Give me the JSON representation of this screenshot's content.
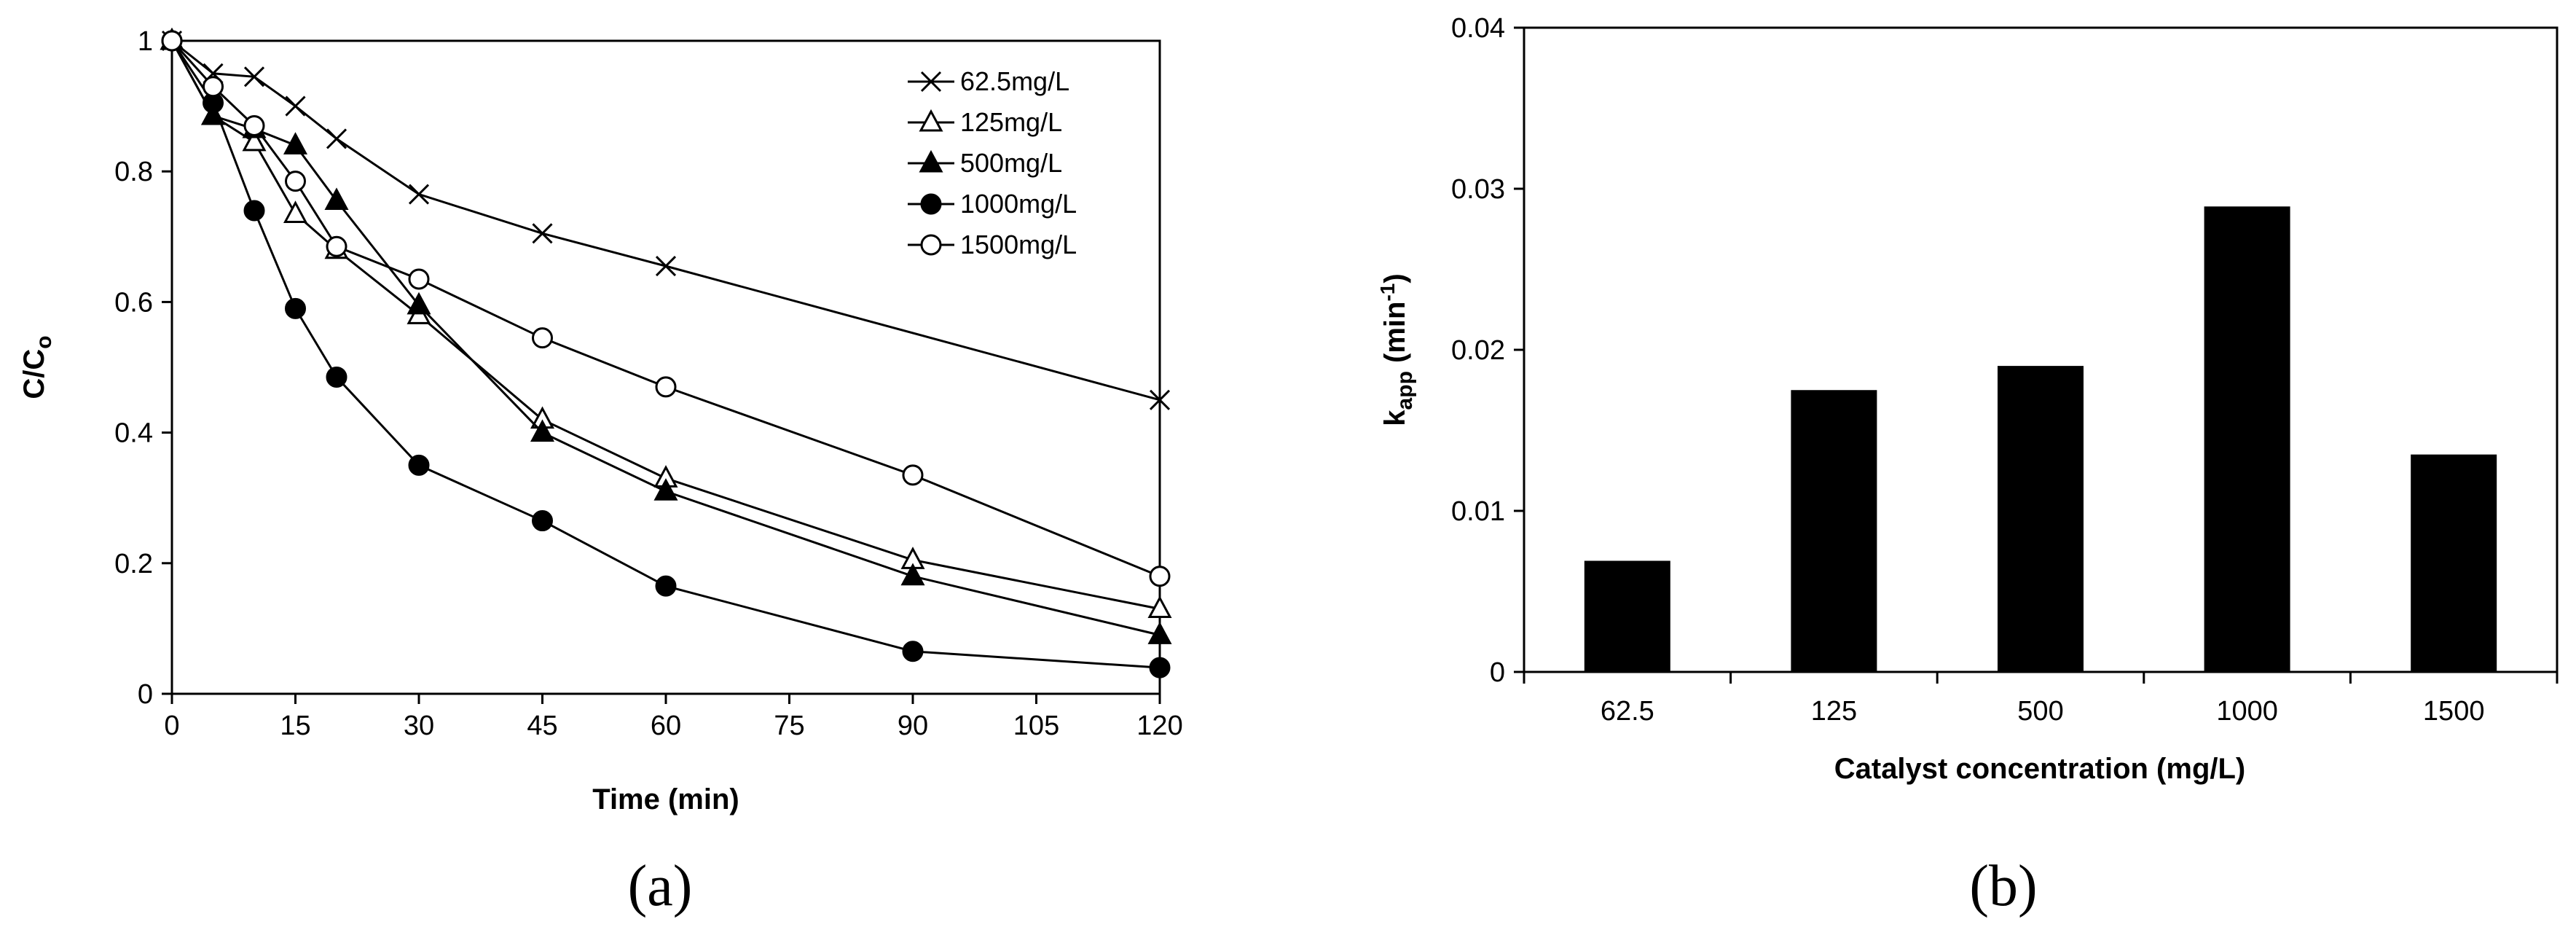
{
  "chart_data": [
    {
      "type": "line",
      "panel_label": "(a)",
      "xlabel": "Time (min)",
      "ylabel": {
        "main": "C/C",
        "sub": "o"
      },
      "xlim": [
        0,
        120
      ],
      "ylim": [
        0,
        1
      ],
      "xticks": [
        "0",
        "15",
        "30",
        "45",
        "60",
        "75",
        "90",
        "105",
        "120"
      ],
      "yticks": [
        "0",
        "0.2",
        "0.4",
        "0.6",
        "0.8",
        "1"
      ],
      "grid": false,
      "legend_position": "top-right",
      "series": [
        {
          "name": "62.5mg/L",
          "marker": "x",
          "x": [
            0,
            5,
            10,
            15,
            20,
            30,
            45,
            60,
            120
          ],
          "y": [
            1.0,
            0.95,
            0.945,
            0.9,
            0.85,
            0.765,
            0.705,
            0.655,
            0.45
          ]
        },
        {
          "name": "125mg/L",
          "marker": "triangle-open",
          "x": [
            0,
            5,
            10,
            15,
            20,
            30,
            45,
            60,
            90,
            120
          ],
          "y": [
            1.0,
            0.885,
            0.845,
            0.735,
            0.68,
            0.58,
            0.42,
            0.33,
            0.205,
            0.13
          ]
        },
        {
          "name": "500mg/L",
          "marker": "triangle-filled",
          "x": [
            0,
            5,
            10,
            15,
            20,
            30,
            45,
            60,
            90,
            120
          ],
          "y": [
            1.0,
            0.885,
            0.865,
            0.84,
            0.755,
            0.595,
            0.4,
            0.31,
            0.18,
            0.09
          ]
        },
        {
          "name": "1000mg/L",
          "marker": "circle-filled",
          "x": [
            0,
            5,
            10,
            15,
            20,
            30,
            45,
            60,
            90,
            120
          ],
          "y": [
            1.0,
            0.905,
            0.74,
            0.59,
            0.485,
            0.35,
            0.265,
            0.165,
            0.065,
            0.04
          ]
        },
        {
          "name": "1500mg/L",
          "marker": "circle-open",
          "x": [
            0,
            5,
            10,
            15,
            20,
            30,
            45,
            60,
            90,
            120
          ],
          "y": [
            1.0,
            0.93,
            0.87,
            0.785,
            0.685,
            0.635,
            0.545,
            0.47,
            0.335,
            0.18
          ]
        }
      ]
    },
    {
      "type": "bar",
      "panel_label": "(b)",
      "xlabel": "Catalyst concentration (mg/L)",
      "ylabel": {
        "main": "k",
        "sub": "app",
        "unit_pre": " (min",
        "sup": "-1",
        "unit_post": ")"
      },
      "categories": [
        "62.5",
        "125",
        "500",
        "1000",
        "1500"
      ],
      "values": [
        0.0069,
        0.0175,
        0.019,
        0.0289,
        0.0135
      ],
      "ylim": [
        0,
        0.04
      ],
      "yticks": [
        "0",
        "0.01",
        "0.02",
        "0.03",
        "0.04"
      ],
      "grid": false,
      "bar_color": "#000000"
    }
  ]
}
